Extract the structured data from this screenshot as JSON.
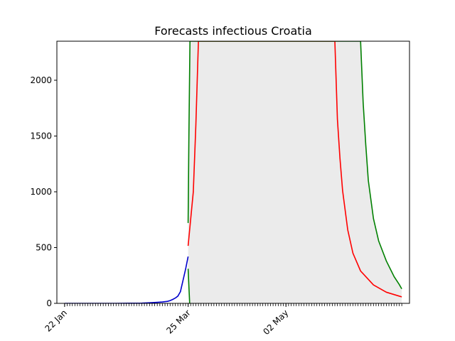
{
  "chart_data": {
    "type": "line",
    "title": "Forecasts infectious Croatia",
    "xlabel": "",
    "ylabel": "",
    "x_range_days": [
      -3,
      134
    ],
    "ylim": [
      0,
      2350
    ],
    "yticks": [
      0,
      500,
      1000,
      1500,
      2000
    ],
    "xticks": [
      {
        "day": 0,
        "label": "22 Jan"
      },
      {
        "day": 48,
        "label": "25 Mar"
      },
      {
        "day": 86,
        "label": "02 May"
      }
    ],
    "minor_tick_days": {
      "start": 0,
      "end": 131,
      "step": 1
    },
    "grid": false,
    "legend": "none",
    "colors": {
      "observed": "#0000cc",
      "central": "#ff0000",
      "bounds": "#008000",
      "band": "#ebebeb"
    },
    "series": [
      {
        "role": "observed",
        "points": [
          [
            0,
            0
          ],
          [
            10,
            0
          ],
          [
            20,
            0
          ],
          [
            25,
            1
          ],
          [
            30,
            2
          ],
          [
            33,
            5
          ],
          [
            36,
            9
          ],
          [
            38,
            12
          ],
          [
            40,
            18
          ],
          [
            41,
            25
          ],
          [
            42,
            35
          ],
          [
            43,
            47
          ],
          [
            44,
            65
          ],
          [
            45,
            105
          ],
          [
            46,
            205
          ],
          [
            47,
            305
          ],
          [
            48,
            420
          ]
        ]
      },
      {
        "role": "central",
        "points": [
          [
            48,
            515
          ],
          [
            50,
            1000
          ],
          [
            51,
            1600
          ],
          [
            52,
            2350
          ],
          [
            105,
            2350
          ],
          [
            106,
            1650
          ],
          [
            107,
            1300
          ],
          [
            108,
            1010
          ],
          [
            110,
            660
          ],
          [
            112,
            450
          ],
          [
            115,
            290
          ],
          [
            120,
            165
          ],
          [
            125,
            100
          ],
          [
            130,
            65
          ],
          [
            131,
            58
          ]
        ]
      },
      {
        "role": "upper",
        "points": [
          [
            48,
            720
          ],
          [
            48.3,
            1500
          ],
          [
            48.7,
            2350
          ],
          [
            115,
            2350
          ],
          [
            116,
            1800
          ],
          [
            117,
            1420
          ],
          [
            118,
            1100
          ],
          [
            120,
            760
          ],
          [
            122,
            560
          ],
          [
            125,
            380
          ],
          [
            128,
            240
          ],
          [
            130,
            170
          ],
          [
            131,
            130
          ]
        ]
      },
      {
        "role": "lower",
        "points": [
          [
            48,
            310
          ],
          [
            48.3,
            150
          ],
          [
            48.6,
            0
          ]
        ]
      }
    ]
  }
}
